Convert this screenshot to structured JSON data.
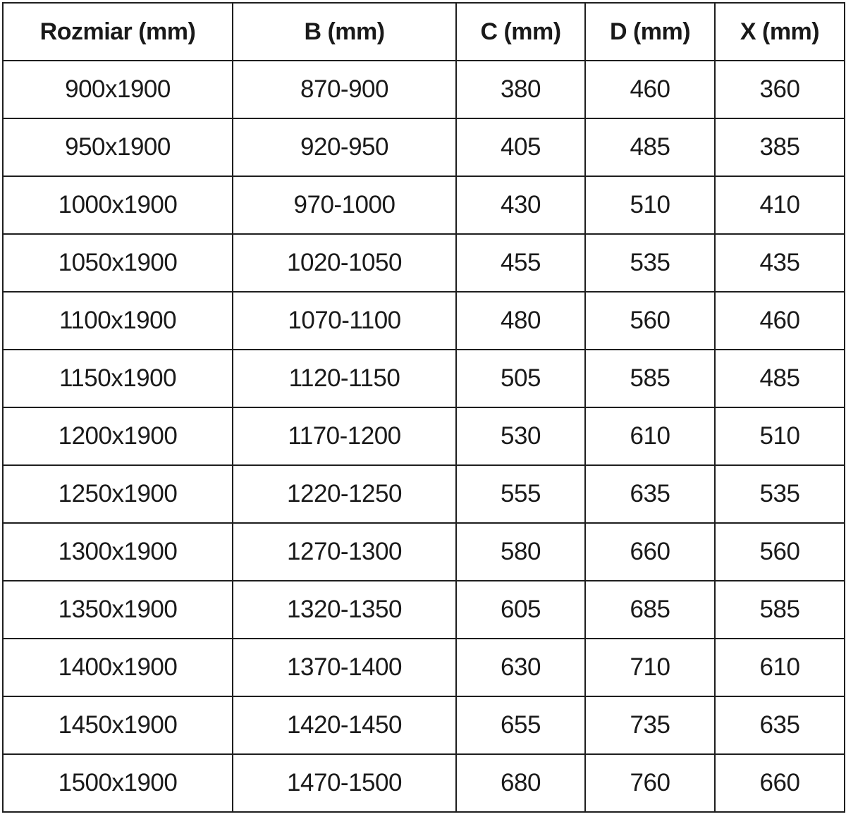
{
  "table": {
    "headers": [
      "Rozmiar (mm)",
      "B (mm)",
      "C (mm)",
      "D (mm)",
      "X (mm)"
    ],
    "rows": [
      [
        "900x1900",
        "870-900",
        "380",
        "460",
        "360"
      ],
      [
        "950x1900",
        "920-950",
        "405",
        "485",
        "385"
      ],
      [
        "1000x1900",
        "970-1000",
        "430",
        "510",
        "410"
      ],
      [
        "1050x1900",
        "1020-1050",
        "455",
        "535",
        "435"
      ],
      [
        "1100x1900",
        "1070-1100",
        "480",
        "560",
        "460"
      ],
      [
        "1150x1900",
        "1120-1150",
        "505",
        "585",
        "485"
      ],
      [
        "1200x1900",
        "1170-1200",
        "530",
        "610",
        "510"
      ],
      [
        "1250x1900",
        "1220-1250",
        "555",
        "635",
        "535"
      ],
      [
        "1300x1900",
        "1270-1300",
        "580",
        "660",
        "560"
      ],
      [
        "1350x1900",
        "1320-1350",
        "605",
        "685",
        "585"
      ],
      [
        "1400x1900",
        "1370-1400",
        "630",
        "710",
        "610"
      ],
      [
        "1450x1900",
        "1420-1450",
        "655",
        "735",
        "635"
      ],
      [
        "1500x1900",
        "1470-1500",
        "680",
        "760",
        "660"
      ]
    ]
  }
}
